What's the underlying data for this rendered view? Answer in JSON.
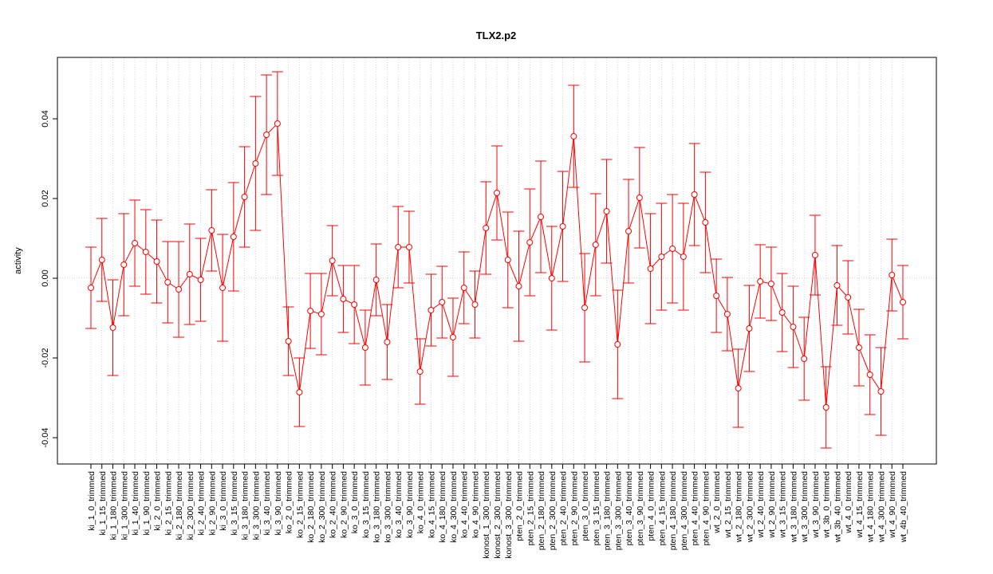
{
  "chart_data": {
    "type": "errorbar",
    "title": "TLX2.p2",
    "ylabel": "activity",
    "color": "#ff0000",
    "categories": [
      "ki_1_0_trimmed",
      "ki_1_15_trimmed",
      "ki_1_180_trimmed",
      "ki_1_300_trimmed",
      "ki_1_40_trimmed",
      "ki_1_90_trimmed",
      "ki_2_0_trimmed",
      "ki_2_15_trimmed",
      "ki_2_180_trimmed",
      "ki_2_300_trimmed",
      "ki_2_40_trimmed",
      "ki_2_90_trimmed",
      "ki_3_0_trimmed",
      "ki_3_15_trimmed",
      "ki_3_180_trimmed",
      "ki_3_300_trimmed",
      "ki_3_40_trimmed",
      "ki_3_90_trimmed",
      "ko_2_0_trimmed",
      "ko_2_15_trimmed",
      "ko_2_180_trimmed",
      "ko_2_300_trimmed",
      "ko_2_40_trimmed",
      "ko_2_90_trimmed",
      "ko_3_0_trimmed",
      "ko_3_15_trimmed",
      "ko_3_180_trimmed",
      "ko_3_300_trimmed",
      "ko_3_40_trimmed",
      "ko_3_90_trimmed",
      "ko_4_0_trimmed",
      "ko_4_15_trimmed",
      "ko_4_180_trimmed",
      "ko_4_300_trimmed",
      "ko_4_40_trimmed",
      "ko_4_90_trimmed",
      "konost_1_300_trimmed",
      "konost_2_300_trimmed",
      "konost_3_300_trimmed",
      "pten_2_0_trimmed",
      "pten_2_15_trimmed",
      "pten_2_180_trimmed",
      "pten_2_300_trimmed",
      "pten_2_40_trimmed",
      "pten_2_90_trimmed",
      "pten_3_0_trimmed",
      "pten_3_15_trimmed",
      "pten_3_180_trimmed",
      "pten_3_300_trimmed",
      "pten_3_40_trimmed",
      "pten_3_90_trimmed",
      "pten_4_0_trimmed",
      "pten_4_15_trimmed",
      "pten_4_180_trimmed",
      "pten_4_300_trimmed",
      "pten_4_40_trimmed",
      "pten_4_90_trimmed",
      "wt_2_0_trimmed",
      "wt_2_15_trimmed",
      "wt_2_180_trimmed",
      "wt_2_300_trimmed",
      "wt_2_40_trimmed",
      "wt_2_90_trimmed",
      "wt_3_15_trimmed",
      "wt_3_180_trimmed",
      "wt_3_300_trimmed",
      "wt_3_90_trimmed",
      "wt_3b_0_trimmed",
      "wt_3b_40_trimmed",
      "wt_4_0_trimmed",
      "wt_4_15_trimmed",
      "wt_4_180_trimmed",
      "wt_4_300_trimmed",
      "wt_4_90_trimmed",
      "wt_4b_40_trimmed"
    ],
    "values": [
      -0.0024,
      0.0046,
      -0.0124,
      0.0034,
      0.0088,
      0.0066,
      0.0042,
      -0.001,
      -0.0028,
      0.001,
      -0.0004,
      0.012,
      -0.0024,
      0.0104,
      0.0204,
      0.0288,
      0.036,
      0.0388,
      -0.0158,
      -0.0286,
      -0.0082,
      -0.009,
      0.0044,
      -0.0052,
      -0.0066,
      -0.0174,
      -0.0004,
      -0.016,
      0.0078,
      0.0078,
      -0.0234,
      -0.008,
      -0.006,
      -0.0148,
      -0.0024,
      -0.0066,
      0.0126,
      0.0214,
      0.0046,
      -0.002,
      0.009,
      0.0154,
      0.0,
      0.013,
      0.0356,
      -0.0074,
      0.0084,
      0.0168,
      -0.0166,
      0.0118,
      0.0202,
      0.0024,
      0.0054,
      0.0074,
      0.0054,
      0.021,
      0.014,
      -0.0044,
      -0.009,
      -0.0276,
      -0.0126,
      -0.0008,
      -0.0014,
      -0.0086,
      -0.0122,
      -0.0202,
      0.0058,
      -0.0324,
      -0.0018,
      -0.0048,
      -0.0174,
      -0.0242,
      -0.0284,
      0.0008,
      -0.006
    ],
    "errors": [
      0.0102,
      0.0104,
      0.012,
      0.0128,
      0.0108,
      0.0106,
      0.0104,
      0.0102,
      0.012,
      0.0126,
      0.0104,
      0.0102,
      0.0134,
      0.0136,
      0.0126,
      0.0168,
      0.015,
      0.013,
      0.0086,
      0.0086,
      0.0094,
      0.0102,
      0.0088,
      0.0084,
      0.0098,
      0.0094,
      0.009,
      0.0094,
      0.0102,
      0.009,
      0.0082,
      0.009,
      0.009,
      0.0098,
      0.009,
      0.0084,
      0.0116,
      0.0118,
      0.012,
      0.0138,
      0.0134,
      0.014,
      0.013,
      0.0138,
      0.0128,
      0.0136,
      0.0128,
      0.013,
      0.0136,
      0.013,
      0.0126,
      0.0138,
      0.0134,
      0.0136,
      0.0134,
      0.0128,
      0.0126,
      0.0092,
      0.0092,
      0.0098,
      0.0108,
      0.0092,
      0.0092,
      0.0098,
      0.0102,
      0.0104,
      0.01,
      0.0102,
      0.01,
      0.0092,
      0.0096,
      0.01,
      0.011,
      0.009,
      0.0092
    ],
    "ylim": [
      -0.0466,
      0.0554
    ],
    "yticks": [
      -0.04,
      -0.02,
      {
        "value": 0,
        "label": "0.00"
      },
      0.02,
      0.04
    ],
    "grid": true,
    "reference_line": 0
  }
}
